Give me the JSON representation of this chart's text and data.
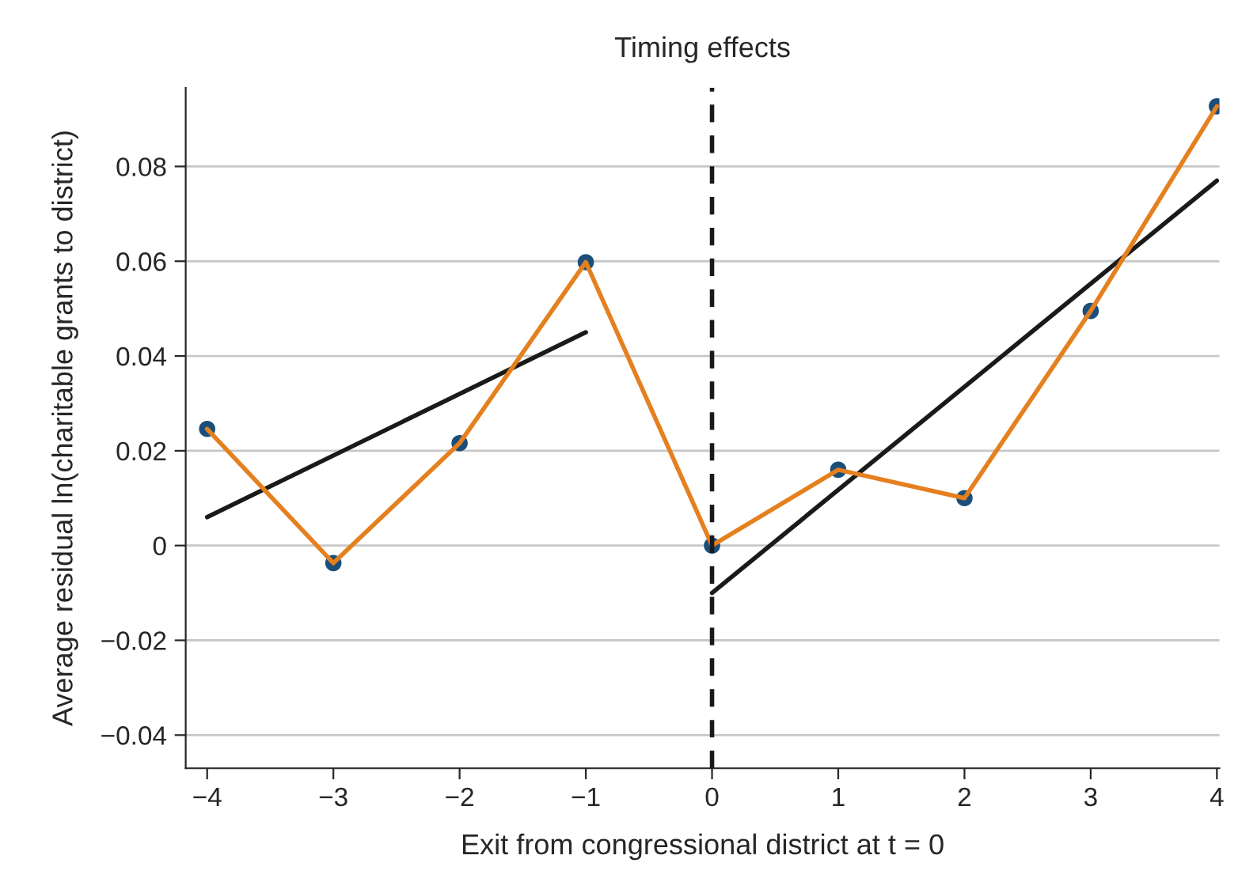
{
  "chart_data": {
    "type": "line",
    "title": "Timing effects",
    "xlabel": "Exit from congressional district at t = 0",
    "ylabel": "Average residual ln(charitable grants to district)",
    "x": [
      -4,
      -3,
      -2,
      -1,
      0,
      1,
      2,
      3,
      4
    ],
    "series": [
      {
        "type": "scatter",
        "color": "#1b4f7a",
        "marker": "circle",
        "values": [
          0.0246,
          -0.0037,
          0.0216,
          0.0598,
          0,
          0.016,
          0.01,
          0.0495,
          0.0927
        ]
      },
      {
        "type": "line",
        "color": "#e5801f",
        "marker": "none",
        "line_style": "solid",
        "values": [
          0.0246,
          -0.0037,
          0.0216,
          0.0598,
          0,
          0.016,
          0.01,
          0.0495,
          0.0927
        ]
      },
      {
        "type": "line",
        "color": "#1a1a1a",
        "marker": "none",
        "line_style": "solid",
        "x": [
          -4,
          -1
        ],
        "values": [
          0.006,
          0.045
        ]
      },
      {
        "type": "line",
        "color": "#1a1a1a",
        "marker": "none",
        "line_style": "solid",
        "x": [
          0,
          4
        ],
        "values": [
          -0.01,
          0.077
        ]
      }
    ],
    "xlim": [
      -4.17,
      4.02
    ],
    "ylim": [
      -0.047,
      0.0966
    ],
    "xticks": [
      {
        "value": -4,
        "label": "−4"
      },
      {
        "value": -3,
        "label": "−3"
      },
      {
        "value": -2,
        "label": "−2"
      },
      {
        "value": -1,
        "label": "−1"
      },
      0,
      1,
      2,
      3,
      4
    ],
    "yticks": [
      {
        "value": -0.04,
        "label": "−0.04"
      },
      {
        "value": -0.02,
        "label": "−0.02"
      },
      0,
      0.02,
      0.04,
      0.06,
      0.08
    ],
    "ref_lines": [
      {
        "axis": "x",
        "value": 0,
        "color": "#1a1a1a",
        "line_style": "dashed"
      }
    ],
    "grid": "y",
    "legend": false
  }
}
